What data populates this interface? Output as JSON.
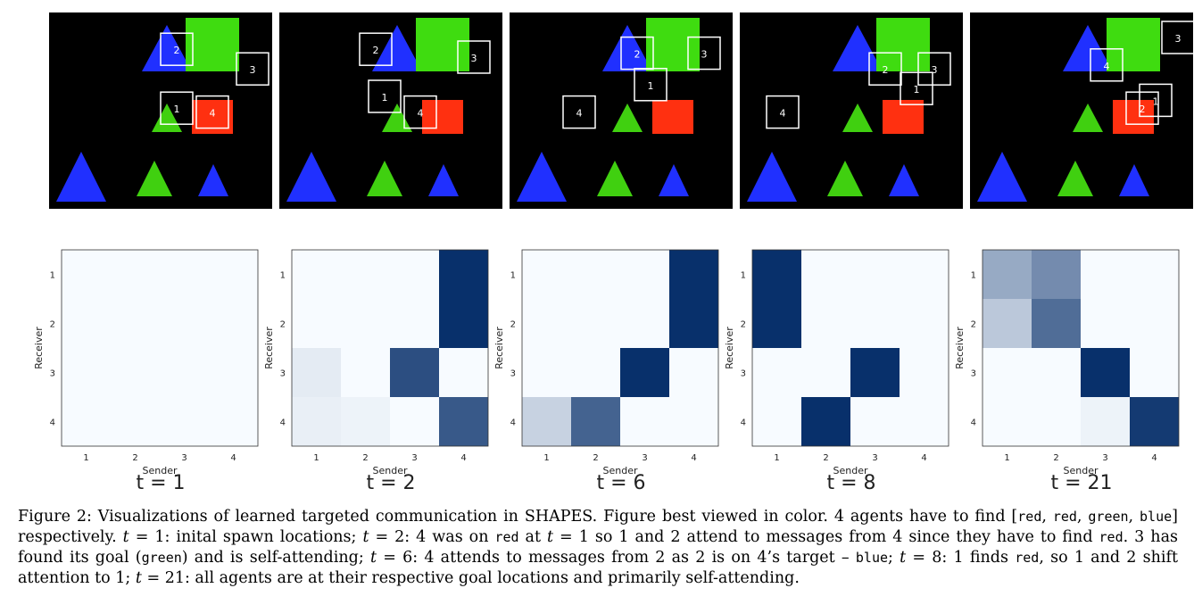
{
  "figure": {
    "panels": [
      {
        "label": "t = 1",
        "agents": [
          {
            "id": "1",
            "col": 2.5,
            "row": 1.8
          },
          {
            "id": "2",
            "col": 2.5,
            "row": 0.3
          },
          {
            "id": "3",
            "col": 4.2,
            "row": 0.8
          },
          {
            "id": "4",
            "col": 3.3,
            "row": 1.9
          }
        ]
      },
      {
        "label": "t = 2",
        "agents": [
          {
            "id": "1",
            "col": 2.0,
            "row": 1.5
          },
          {
            "id": "2",
            "col": 1.8,
            "row": 0.3
          },
          {
            "id": "3",
            "col": 4.0,
            "row": 0.5
          },
          {
            "id": "4",
            "col": 2.8,
            "row": 1.9
          }
        ]
      },
      {
        "label": "t = 6",
        "agents": [
          {
            "id": "1",
            "col": 2.8,
            "row": 1.2
          },
          {
            "id": "2",
            "col": 2.5,
            "row": 0.4
          },
          {
            "id": "3",
            "col": 4.0,
            "row": 0.4
          },
          {
            "id": "4",
            "col": 1.2,
            "row": 1.9
          }
        ]
      },
      {
        "label": "t = 8",
        "agents": [
          {
            "id": "1",
            "col": 3.6,
            "row": 1.3
          },
          {
            "id": "2",
            "col": 2.9,
            "row": 0.8
          },
          {
            "id": "3",
            "col": 4.0,
            "row": 0.8
          },
          {
            "id": "4",
            "col": 0.6,
            "row": 1.9
          }
        ]
      },
      {
        "label": "t = 21",
        "agents": [
          {
            "id": "1",
            "col": 3.8,
            "row": 1.6
          },
          {
            "id": "2",
            "col": 3.5,
            "row": 1.8
          },
          {
            "id": "3",
            "col": 4.3,
            "row": 0.0
          },
          {
            "id": "4",
            "col": 2.7,
            "row": 0.7
          }
        ]
      }
    ]
  },
  "chart_data": [
    {
      "type": "heatmap",
      "xlabel": "Sender",
      "ylabel": "Receiver",
      "x": [
        "1",
        "2",
        "3",
        "4"
      ],
      "y": [
        "1",
        "2",
        "3",
        "4"
      ],
      "values": [
        [
          0,
          0,
          0,
          0
        ],
        [
          0,
          0,
          0,
          0
        ],
        [
          0,
          0,
          0,
          0
        ],
        [
          0,
          0,
          0,
          0
        ]
      ]
    },
    {
      "type": "heatmap",
      "xlabel": "Sender",
      "ylabel": "Receiver",
      "x": [
        "1",
        "2",
        "3",
        "4"
      ],
      "y": [
        "1",
        "2",
        "3",
        "4"
      ],
      "values": [
        [
          0,
          0,
          0,
          1
        ],
        [
          0,
          0,
          0,
          1
        ],
        [
          0.08,
          0,
          0.85,
          0
        ],
        [
          0.06,
          0.04,
          0,
          0.8
        ]
      ]
    },
    {
      "type": "heatmap",
      "xlabel": "Sender",
      "ylabel": "Receiver",
      "x": [
        "1",
        "2",
        "3",
        "4"
      ],
      "y": [
        "1",
        "2",
        "3",
        "4"
      ],
      "values": [
        [
          0,
          0,
          0,
          1
        ],
        [
          0,
          0,
          0,
          1
        ],
        [
          0,
          0,
          1,
          0
        ],
        [
          0.2,
          0.75,
          0,
          0
        ]
      ]
    },
    {
      "type": "heatmap",
      "xlabel": "Sender",
      "ylabel": "Receiver",
      "x": [
        "1",
        "2",
        "3",
        "4"
      ],
      "y": [
        "1",
        "2",
        "3",
        "4"
      ],
      "values": [
        [
          1,
          0,
          0,
          0
        ],
        [
          1,
          0,
          0,
          0
        ],
        [
          0,
          0,
          1,
          0
        ],
        [
          0,
          1,
          0,
          0
        ]
      ]
    },
    {
      "type": "heatmap",
      "xlabel": "Sender",
      "ylabel": "Receiver",
      "x": [
        "1",
        "2",
        "3",
        "4"
      ],
      "y": [
        "1",
        "2",
        "3",
        "4"
      ],
      "values": [
        [
          0.4,
          0.55,
          0,
          0
        ],
        [
          0.25,
          0.7,
          0,
          0
        ],
        [
          0,
          0,
          1,
          0
        ],
        [
          0,
          0,
          0.04,
          0.95
        ]
      ]
    }
  ],
  "caption": {
    "s1": "Figure 2: Visualizations of learned targeted communication in SHAPES. Figure best viewed in color. 4 agents have to find [",
    "t_red1": "red",
    "s2": ", ",
    "t_red2": "red",
    "s3": ", ",
    "t_green1": "green",
    "s4": ", ",
    "t_blue1": "blue",
    "s5": "] respectively. ",
    "v1": "t",
    "s6": " = 1: inital spawn locations; ",
    "v2": "t",
    "s7": " = 2: 4 was on ",
    "t_red3": "red",
    "s8": " at ",
    "v3": "t",
    "s9": " = 1 so 1 and 2 attend to messages from 4 since they have to find ",
    "t_red4": "red",
    "s10": ". 3 has found its goal (",
    "t_green2": "green",
    "s11": ") and is self-attending; ",
    "v4": "t",
    "s12": " = 6: 4 attends to messages from 2 as 2 is on 4’s target – ",
    "t_blue2": "blue",
    "s13": ";",
    "v5": "t",
    "s14": " = 8: 1 finds ",
    "t_red5": "red",
    "s15": ", so 1 and 2 shift attention to 1; ",
    "v6": "t",
    "s16": " = 21: all agents are at their respective goal locations and primarily self-attending."
  }
}
